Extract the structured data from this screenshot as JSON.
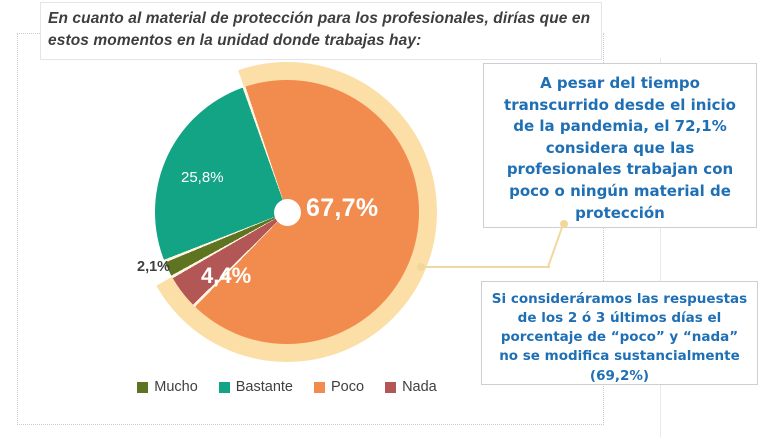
{
  "title": {
    "text": "En cuanto al material de protección para los profesionales, dirías que en\nestos momentos en la unidad donde trabajas hay:"
  },
  "chart_data": {
    "type": "pie",
    "title": "Material de protección disponible en la unidad",
    "categories": [
      "Mucho",
      "Bastante",
      "Poco",
      "Nada"
    ],
    "values": [
      2.1,
      25.8,
      67.7,
      4.4
    ],
    "unit": "percent",
    "colors": {
      "Mucho": "#5E7420",
      "Bastante": "#13A385",
      "Poco": "#F28B4E",
      "Nada": "#B25755"
    },
    "separator_color": "#FDF4E3",
    "start_angle_deg": -19,
    "order_clockwise": [
      "Poco",
      "Nada",
      "Mucho",
      "Bastante"
    ],
    "slice_labels": {
      "mucho": "2,1%",
      "bastante": "25,8%",
      "poco": "67,7%",
      "nada": "4,4%"
    },
    "highlight_ring": {
      "percent": 72.1,
      "covers": [
        "Poco",
        "Nada"
      ],
      "color": "#FBDFA7"
    },
    "donut_hole": "small white center circle",
    "legend_position": "bottom"
  },
  "legend": {
    "items": [
      {
        "label": "Mucho",
        "color": "#5E7420"
      },
      {
        "label": "Bastante",
        "color": "#13A385"
      },
      {
        "label": "Poco",
        "color": "#F28B4E"
      },
      {
        "label": "Nada",
        "color": "#B25755"
      }
    ]
  },
  "callouts": {
    "box1": {
      "text": "A pesar del tiempo\ntranscurrido desde el inicio\nde la pandemia, el 72,1%\nconsidera que las\nprofesionales trabajan con\npoco o ningún material de\nprotección"
    },
    "box2": {
      "text": "Si consideráramos las respuestas\nde los 2 ó 3 últimos días el\nporcentaje de “poco” y “nada”\nno se modifica sustancialmente\n(69,2%)"
    }
  },
  "accent_colors": {
    "callout_text": "#1F6FB5",
    "connector": "#F0D9A0",
    "title_text": "#3E3E3E"
  }
}
